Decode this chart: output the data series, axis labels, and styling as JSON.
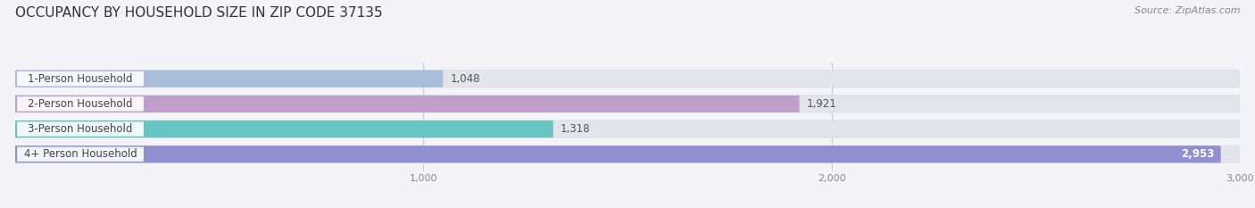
{
  "title": "OCCUPANCY BY HOUSEHOLD SIZE IN ZIP CODE 37135",
  "source_text": "Source: ZipAtlas.com",
  "categories": [
    "1-Person Household",
    "2-Person Household",
    "3-Person Household",
    "4+ Person Household"
  ],
  "values": [
    1048,
    1921,
    1318,
    2953
  ],
  "bar_colors": [
    "#aabdd8",
    "#c0a0c8",
    "#68c4c0",
    "#9090d0"
  ],
  "value_labels": [
    "1,048",
    "1,921",
    "1,318",
    "2,953"
  ],
  "xlim_max": 3200,
  "data_max": 3000,
  "xticks": [
    1000,
    2000,
    3000
  ],
  "xtick_labels": [
    "1,000",
    "2,000",
    "3,000"
  ],
  "background_color": "#f4f4f8",
  "bar_bg_color": "#e4e4ec",
  "title_fontsize": 11,
  "source_fontsize": 8,
  "label_fontsize": 8.5,
  "value_fontsize": 8.5,
  "fig_width": 14.06,
  "fig_height": 2.33
}
